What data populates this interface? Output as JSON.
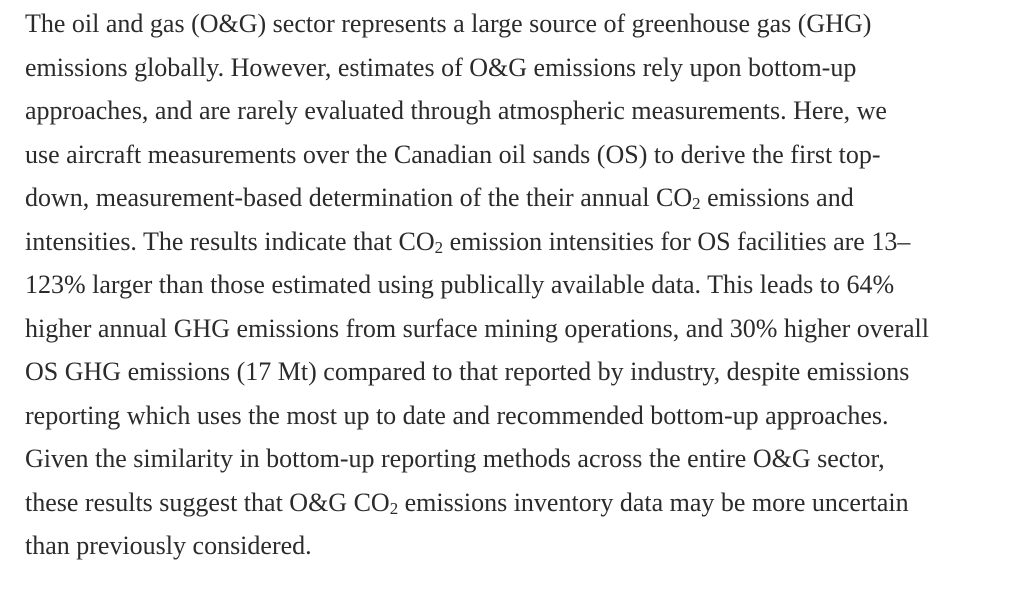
{
  "page": {
    "background_color": "#ffffff",
    "text_color": "#2b2b2b"
  },
  "abstract": {
    "lines": [
      [
        {
          "t": "The oil and gas (O&G) sector represents a large source of greenhouse gas (GHG)"
        }
      ],
      [
        {
          "t": "emissions globally. However, estimates of O&G emissions rely upon bottom-up"
        }
      ],
      [
        {
          "t": "approaches, and are rarely evaluated through atmospheric measurements. Here, we"
        }
      ],
      [
        {
          "t": "use aircraft measurements over the Canadian oil sands (OS) to derive the first top-"
        }
      ],
      [
        {
          "t": "down, measurement-based determination of the their annual CO"
        },
        {
          "t": "2",
          "sub": true
        },
        {
          "t": " emissions and"
        }
      ],
      [
        {
          "t": "intensities. The results indicate that CO"
        },
        {
          "t": "2",
          "sub": true
        },
        {
          "t": " emission intensities for OS facilities are 13–"
        }
      ],
      [
        {
          "t": "123% larger than those estimated using publically available data. This leads to 64%"
        }
      ],
      [
        {
          "t": "higher annual GHG emissions from surface mining operations, and 30% higher overall"
        }
      ],
      [
        {
          "t": "OS GHG emissions (17 Mt) compared to that reported by industry, despite emissions"
        }
      ],
      [
        {
          "t": "reporting which uses the most up to date and recommended bottom-up approaches."
        }
      ],
      [
        {
          "t": "Given the similarity in bottom-up reporting methods across the entire O&G sector,"
        }
      ],
      [
        {
          "t": "these results suggest that O&G CO"
        },
        {
          "t": "2",
          "sub": true
        },
        {
          "t": " emissions inventory data may be more uncertain"
        }
      ],
      [
        {
          "t": "than previously considered."
        }
      ]
    ]
  }
}
